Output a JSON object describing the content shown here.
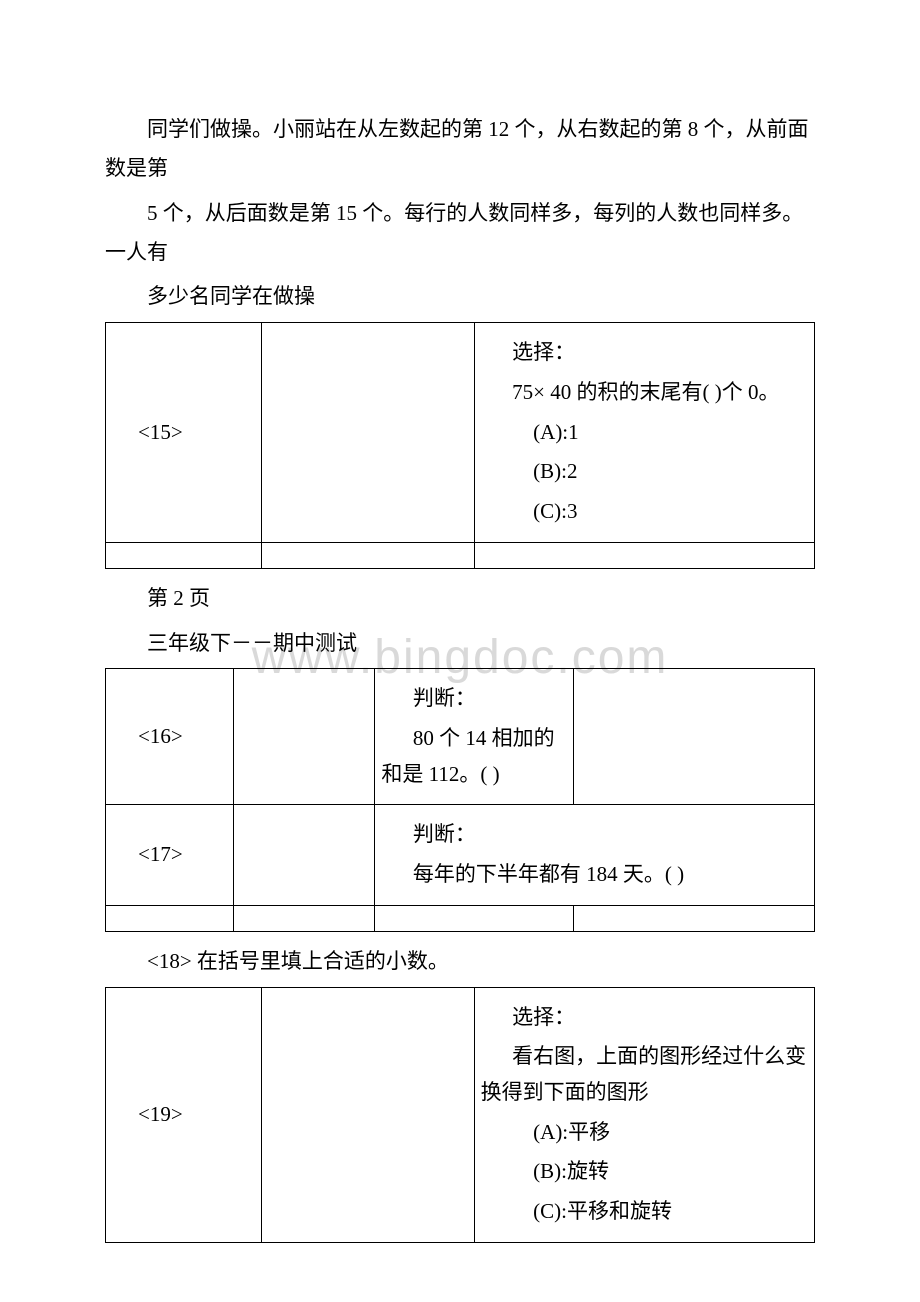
{
  "paragraphs": {
    "p1": "同学们做操。小丽站在从左数起的第 12 个，从右数起的第 8 个，从前面数是第",
    "p2": "5 个，从后面数是第 15 个。每行的人数同样多，每列的人数也同样多。一人有",
    "p3": "多少名同学在做操",
    "page_note": "第 2 页",
    "title2": "三年级下－－期中测试",
    "q18": "<18> 在括号里填上合适的小数。"
  },
  "table1": {
    "row1": {
      "c1": "<15>",
      "c3_l1": "选择：",
      "c3_l2": "75× 40 的积的末尾有( )个 0。",
      "c3_l3": "(A):1",
      "c3_l4": "(B):2",
      "c3_l5": "(C):3"
    }
  },
  "table2": {
    "row1": {
      "c1": "<16>",
      "c3_l1": "判断：",
      "c3_l2": "80 个 14 相加的和是 112。(    )"
    },
    "row2": {
      "c1": "<17>",
      "c3_l1": "判断：",
      "c3_l2": "每年的下半年都有 184 天。(    )"
    }
  },
  "table3": {
    "row1": {
      "c1": "<19>",
      "c3_l1": "选择：",
      "c3_l2": "看右图，上面的图形经过什么变换得到下面的图形",
      "c3_l3": "(A):平移",
      "c3_l4": "(B):旋转",
      "c3_l5": "(C):平移和旋转"
    }
  },
  "watermark": "www.bingdoc.com"
}
